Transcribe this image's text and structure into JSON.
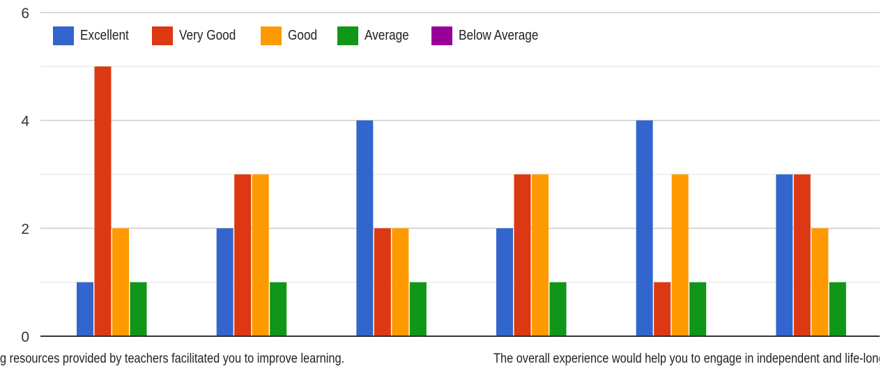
{
  "chart_data": {
    "type": "bar",
    "title": "",
    "xlabel": "",
    "ylabel": "",
    "ylim": [
      0,
      6
    ],
    "yticks": [
      0,
      2,
      4,
      6
    ],
    "grid": true,
    "legend_position": "top-left",
    "categories": [
      "The learning resources provided by teachers facilitated you to improve learning.",
      "",
      "",
      "",
      "The overall experience would help you to engage in independent and life-long learning.",
      ""
    ],
    "visible_category_labels": [
      "g resources provided by teachers facilitated you to improve learning.",
      "The overall experience would help you to engage in independent and life-long lear"
    ],
    "series": [
      {
        "name": "Excellent",
        "color": "#3366cc",
        "values": [
          1,
          2,
          4,
          2,
          4,
          3
        ]
      },
      {
        "name": "Very Good",
        "color": "#dc3912",
        "values": [
          5,
          3,
          2,
          3,
          1,
          3
        ]
      },
      {
        "name": "Good",
        "color": "#ff9900",
        "values": [
          2,
          3,
          2,
          3,
          3,
          2
        ]
      },
      {
        "name": "Average",
        "color": "#109618",
        "values": [
          1,
          1,
          1,
          1,
          1,
          1
        ]
      },
      {
        "name": "Below Average",
        "color": "#990099",
        "values": [
          0,
          0,
          0,
          0,
          0,
          0
        ]
      }
    ]
  }
}
